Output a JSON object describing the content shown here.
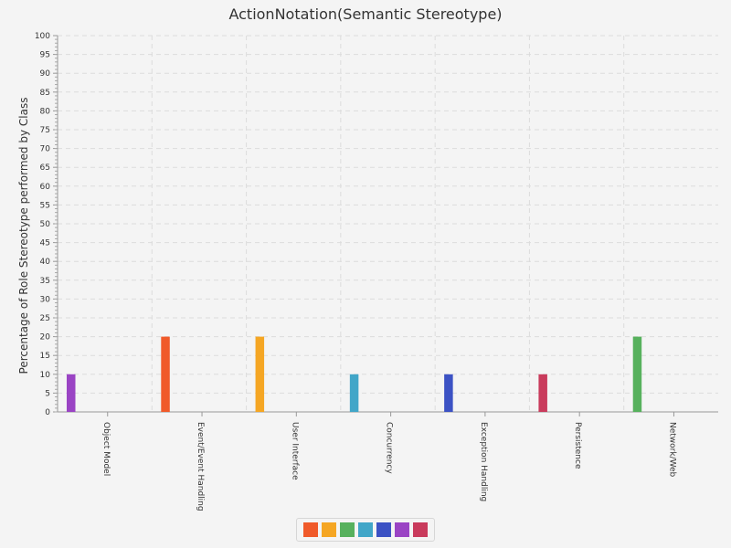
{
  "chart_data": {
    "type": "bar",
    "title": "ActionNotation(Semantic Stereotype)",
    "xlabel": "",
    "ylabel": "Percentage of Role Stereotype performed by Class",
    "ylim": [
      0,
      100
    ],
    "y_major_step": 5,
    "grid": true,
    "legend": "bottom-center",
    "categories": [
      "Object Model",
      "Event/Event Handling",
      "User Interface",
      "Concurrency",
      "Exception Handling",
      "Persistence",
      "Network/Web"
    ],
    "series": [
      {
        "color": "#f05a2a",
        "values": [
          0,
          20,
          0,
          0,
          0,
          0,
          0
        ]
      },
      {
        "color": "#f5a623",
        "values": [
          0,
          0,
          20,
          0,
          0,
          0,
          0
        ]
      },
      {
        "color": "#57b15d",
        "values": [
          0,
          0,
          0,
          0,
          0,
          0,
          20
        ]
      },
      {
        "color": "#41a6c8",
        "values": [
          0,
          0,
          0,
          10,
          0,
          0,
          0
        ]
      },
      {
        "color": "#3c52c4",
        "values": [
          0,
          0,
          0,
          0,
          10,
          0,
          0
        ]
      },
      {
        "color": "#9a44c4",
        "values": [
          10,
          0,
          0,
          0,
          0,
          0,
          0
        ]
      },
      {
        "color": "#c93b5c",
        "values": [
          0,
          0,
          0,
          0,
          0,
          10,
          0
        ]
      }
    ]
  }
}
